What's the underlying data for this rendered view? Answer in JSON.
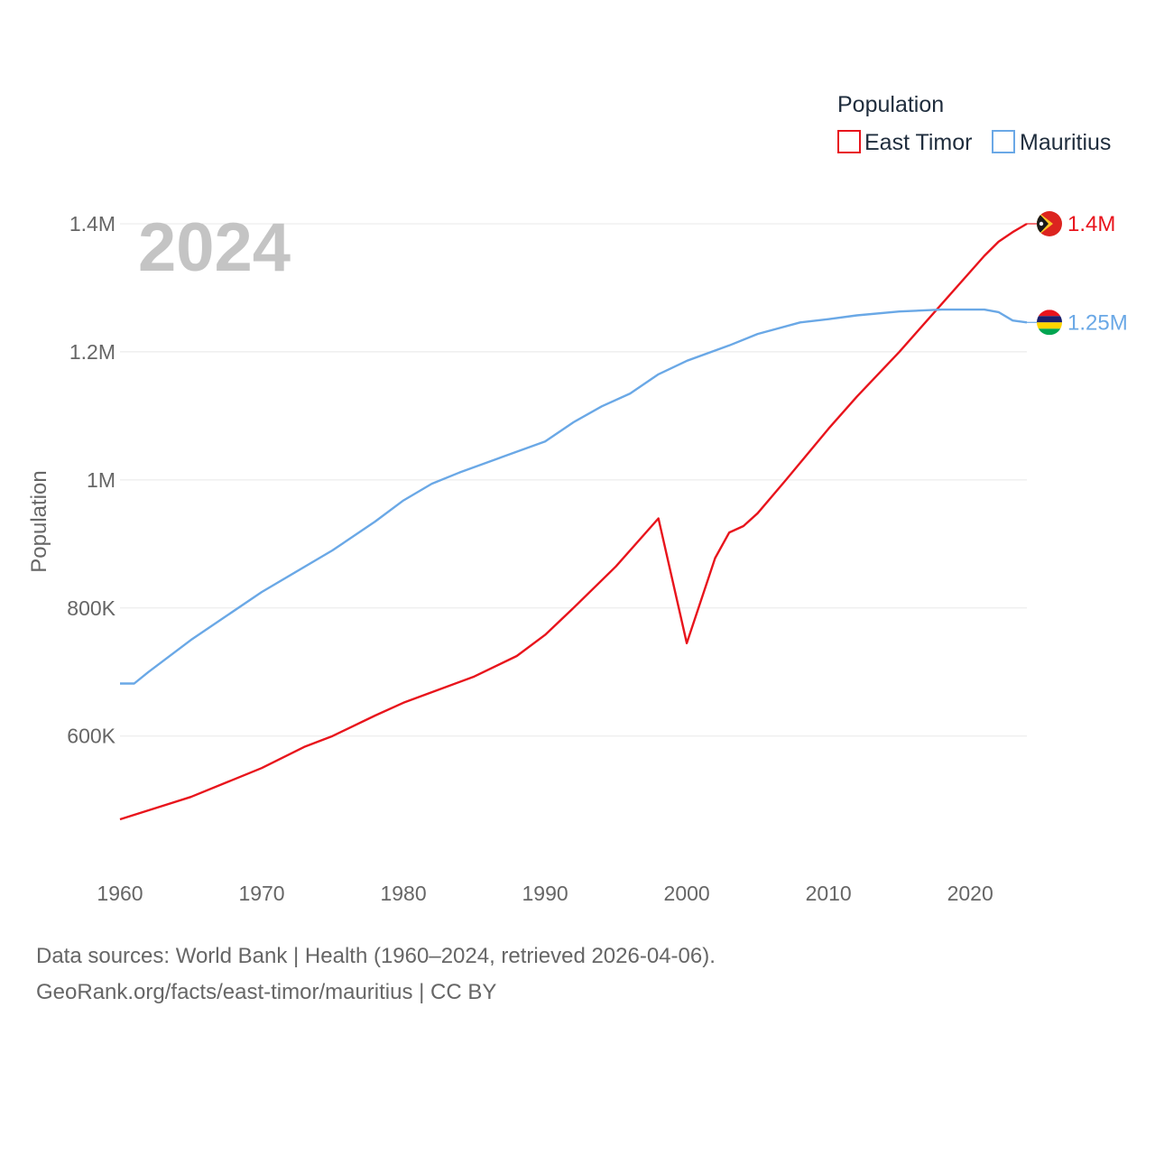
{
  "chart_data": {
    "type": "line",
    "ylabel": "Population",
    "year_label": "2024",
    "xlim": [
      1960,
      2024
    ],
    "ylim": [
      470000,
      1400000
    ],
    "x_ticks": [
      1960,
      1970,
      1980,
      1990,
      2000,
      2010,
      2020
    ],
    "y_ticks": [
      {
        "value": 600000,
        "label": "600K"
      },
      {
        "value": 800000,
        "label": "800K"
      },
      {
        "value": 1000000,
        "label": "1M"
      },
      {
        "value": 1200000,
        "label": "1.2M"
      },
      {
        "value": 1400000,
        "label": "1.4M"
      }
    ],
    "legend": {
      "title": "Population"
    },
    "series": [
      {
        "name": "East Timor",
        "color": "#e8141c",
        "end_label": "1.4M",
        "flag_icon": "east-timor-flag-icon",
        "points": [
          [
            1960,
            470000
          ],
          [
            1965,
            505000
          ],
          [
            1970,
            550000
          ],
          [
            1973,
            583000
          ],
          [
            1975,
            600000
          ],
          [
            1978,
            632000
          ],
          [
            1980,
            652000
          ],
          [
            1985,
            693000
          ],
          [
            1988,
            725000
          ],
          [
            1990,
            758000
          ],
          [
            1992,
            800000
          ],
          [
            1995,
            865000
          ],
          [
            1998,
            940000
          ],
          [
            2000,
            745000
          ],
          [
            2002,
            878000
          ],
          [
            2003,
            918000
          ],
          [
            2004,
            928000
          ],
          [
            2005,
            948000
          ],
          [
            2007,
            1000000
          ],
          [
            2010,
            1080000
          ],
          [
            2012,
            1130000
          ],
          [
            2015,
            1200000
          ],
          [
            2018,
            1275000
          ],
          [
            2021,
            1350000
          ],
          [
            2022,
            1372000
          ],
          [
            2023,
            1387000
          ],
          [
            2024,
            1400000
          ]
        ]
      },
      {
        "name": "Mauritius",
        "color": "#6aa8e6",
        "end_label": "1.25M",
        "flag_icon": "mauritius-flag-icon",
        "points": [
          [
            1960,
            682000
          ],
          [
            1961,
            682000
          ],
          [
            1962,
            700000
          ],
          [
            1965,
            750000
          ],
          [
            1970,
            825000
          ],
          [
            1975,
            890000
          ],
          [
            1978,
            935000
          ],
          [
            1980,
            968000
          ],
          [
            1982,
            994000
          ],
          [
            1984,
            1012000
          ],
          [
            1987,
            1036000
          ],
          [
            1990,
            1060000
          ],
          [
            1992,
            1090000
          ],
          [
            1994,
            1115000
          ],
          [
            1996,
            1135000
          ],
          [
            1998,
            1165000
          ],
          [
            2000,
            1186000
          ],
          [
            2003,
            1210000
          ],
          [
            2005,
            1228000
          ],
          [
            2008,
            1246000
          ],
          [
            2010,
            1251000
          ],
          [
            2012,
            1257000
          ],
          [
            2015,
            1263000
          ],
          [
            2018,
            1266000
          ],
          [
            2021,
            1266000
          ],
          [
            2022,
            1262000
          ],
          [
            2023,
            1249000
          ],
          [
            2024,
            1246000
          ]
        ]
      }
    ]
  },
  "footer": {
    "line1": "Data sources: World Bank | Health (1960–2024, retrieved 2026-04-06).",
    "line2": "GeoRank.org/facts/east-timor/mauritius | CC BY"
  }
}
